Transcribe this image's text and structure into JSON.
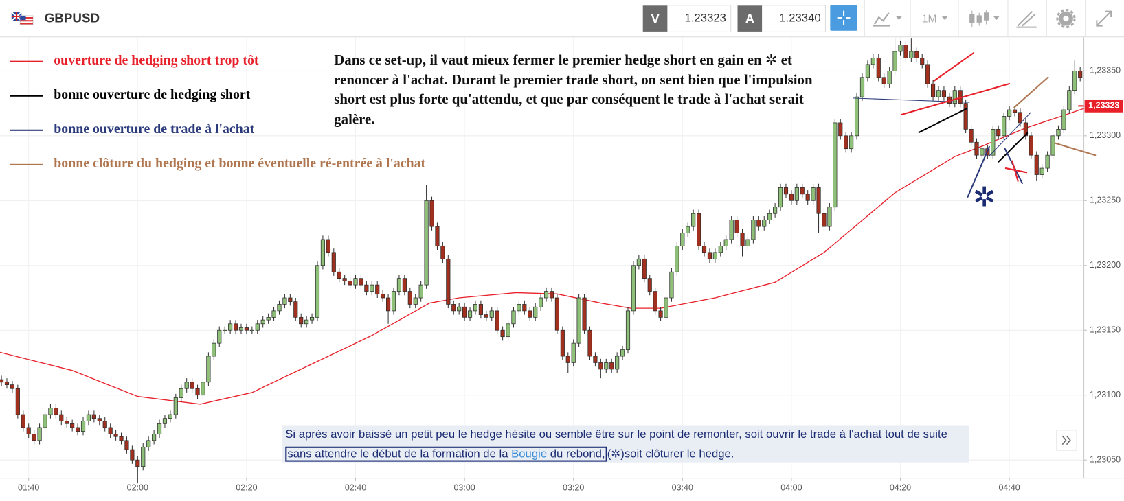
{
  "toolbar": {
    "symbol": "GBPUSD",
    "bid_label": "V",
    "bid": "1.23323",
    "ask_label": "A",
    "ask": "1.23340",
    "timeframe": "1M"
  },
  "legend": [
    {
      "label": "ouverture de hedging short trop tôt",
      "color": "#e8202a"
    },
    {
      "label": "bonne ouverture de hedging short",
      "color": "#000000"
    },
    {
      "label": "bonne ouverture de trade à l'achat",
      "color": "#2b3a7a"
    },
    {
      "label": "bonne clôture du hedging et bonne éventuelle ré-entrée à l'achat",
      "color": "#b07650"
    }
  ],
  "note": {
    "parts": [
      "Dans ce set-up, il vaut mieux fermer le premier hedge short en gain en ",
      "✲",
      " et renoncer à l'achat. Durant le premier trade short, on sent bien que l'impulsion short est plus forte qu'attendu, et que par conséquent le trade à l'achat serait galère."
    ]
  },
  "chart_marker": "✲",
  "bottom_note": {
    "lead": "Si après avoir baissé un petit peu le hedge hésite ou semble être sur le point de remonter, soit ouvrir le  trade à l'achat tout de suite ",
    "boxed": "sans attendre le début de la formation de la ",
    "highlight": "Bougie",
    "boxed_end": " du rebond,",
    "tail": "(✲)soit clôturer le  hedge."
  },
  "chart_data": {
    "type": "candlestick",
    "up_color": "#8fc07a",
    "down_color": "#a1301f",
    "grid": true,
    "xlim": [
      -0.26,
      198.68
    ],
    "ylim": [
      1.23036,
      1.23376
    ],
    "xticks": [
      {
        "value": 5,
        "label": "01:40"
      },
      {
        "value": 25,
        "label": "02:00"
      },
      {
        "value": 45,
        "label": "02:20"
      },
      {
        "value": 65,
        "label": "02:40"
      },
      {
        "value": 85,
        "label": "03:00"
      },
      {
        "value": 105,
        "label": "03:20"
      },
      {
        "value": 125,
        "label": "03:40"
      },
      {
        "value": 145,
        "label": "04:00"
      },
      {
        "value": 165,
        "label": "04:20"
      },
      {
        "value": 185,
        "label": "04:40"
      }
    ],
    "yticks": [
      {
        "value": 1.2305,
        "label": "1,23050"
      },
      {
        "value": 1.231,
        "label": "1,23100"
      },
      {
        "value": 1.2315,
        "label": "1,23150"
      },
      {
        "value": 1.232,
        "label": "1,23200"
      },
      {
        "value": 1.2325,
        "label": "1,23250"
      },
      {
        "value": 1.233,
        "label": "1,23300"
      },
      {
        "value": 1.2335,
        "label": "1,23350"
      }
    ],
    "current_price": {
      "value": 1.23323,
      "label": "1,23323",
      "color": "#e8202a"
    },
    "open": [
      1.23112,
      1.2311,
      1.23108,
      1.23105,
      1.23085,
      1.23075,
      1.2307,
      1.23065,
      1.23075,
      1.23085,
      1.2309,
      1.23085,
      1.2308,
      1.23078,
      1.23075,
      1.23072,
      1.2308,
      1.23085,
      1.23082,
      1.2308,
      1.23075,
      1.2307,
      1.23068,
      1.23065,
      1.23058,
      1.2305,
      1.23045,
      1.2306,
      1.23065,
      1.2307,
      1.23078,
      1.23082,
      1.23085,
      1.23098,
      1.23105,
      1.2311,
      1.23105,
      1.231,
      1.2311,
      1.2313,
      1.2314,
      1.2315,
      1.2315,
      1.23155,
      1.2315,
      1.23152,
      1.2315,
      1.2315,
      1.23155,
      1.23158,
      1.2316,
      1.23165,
      1.2317,
      1.23175,
      1.23172,
      1.2316,
      1.23155,
      1.23158,
      1.2316,
      1.232,
      1.2322,
      1.2321,
      1.23195,
      1.2319,
      1.23188,
      1.23185,
      1.2319,
      1.23185,
      1.2318,
      1.23185,
      1.23178,
      1.23175,
      1.23165,
      1.2318,
      1.2319,
      1.2318,
      1.2317,
      1.23175,
      1.23185,
      1.2325,
      1.2323,
      1.23215,
      1.23205,
      1.2317,
      1.23165,
      1.23168,
      1.2316,
      1.23165,
      1.2317,
      1.23162,
      1.2316,
      1.23165,
      1.2315,
      1.23145,
      1.23155,
      1.23165,
      1.2317,
      1.23165,
      1.2316,
      1.23168,
      1.23175,
      1.2318,
      1.23175,
      1.2315,
      1.2313,
      1.23125,
      1.2314,
      1.23175,
      1.2315,
      1.2313,
      1.23125,
      1.2312,
      1.23125,
      1.2312,
      1.2313,
      1.23135,
      1.23165,
      1.232,
      1.23205,
      1.2319,
      1.2318,
      1.23165,
      1.2316,
      1.23175,
      1.23195,
      1.23215,
      1.23225,
      1.2323,
      1.2324,
      1.23215,
      1.2321,
      1.23205,
      1.2321,
      1.23215,
      1.2322,
      1.23235,
      1.23225,
      1.23215,
      1.2322,
      1.23235,
      1.2323,
      1.23235,
      1.2324,
      1.23245,
      1.2326,
      1.23255,
      1.2325,
      1.2326,
      1.23255,
      1.2325,
      1.2326,
      1.2324,
      1.2323,
      1.23245,
      1.2331,
      1.233,
      1.2329,
      1.233,
      1.2333,
      1.23345,
      1.23355,
      1.2336,
      1.23345,
      1.2334,
      1.2335,
      1.23365,
      1.2337,
      1.2336,
      1.23365,
      1.2336,
      1.23355,
      1.2334,
      1.2333,
      1.23335,
      1.2333,
      1.23325,
      1.23335,
      1.23325,
      1.23305,
      1.23295,
      1.23285,
      1.2329,
      1.23285,
      1.23305,
      1.233,
      1.23315,
      1.2332,
      1.23318,
      1.2331,
      1.233,
      1.23285,
      1.2327,
      1.23275,
      1.23285,
      1.233,
      1.23305,
      1.2332,
      1.23335,
      1.2335
    ],
    "high": [
      1.23115,
      1.23113,
      1.23111,
      1.23108,
      1.23088,
      1.23078,
      1.23073,
      1.23078,
      1.23088,
      1.23093,
      1.23093,
      1.23088,
      1.23083,
      1.23081,
      1.23078,
      1.23083,
      1.23088,
      1.23088,
      1.23085,
      1.23083,
      1.23078,
      1.23073,
      1.23071,
      1.23068,
      1.23061,
      1.23053,
      1.23063,
      1.23068,
      1.23073,
      1.23081,
      1.23085,
      1.23088,
      1.23101,
      1.23108,
      1.23113,
      1.23113,
      1.23108,
      1.23113,
      1.23133,
      1.23143,
      1.23153,
      1.23153,
      1.23158,
      1.23158,
      1.23155,
      1.23155,
      1.23153,
      1.23158,
      1.23161,
      1.23163,
      1.23168,
      1.23173,
      1.23178,
      1.23178,
      1.23175,
      1.23163,
      1.23161,
      1.23163,
      1.23203,
      1.23223,
      1.23223,
      1.23213,
      1.23198,
      1.23193,
      1.23191,
      1.23193,
      1.23193,
      1.23188,
      1.23188,
      1.23188,
      1.23181,
      1.23178,
      1.23183,
      1.23193,
      1.23193,
      1.23183,
      1.23178,
      1.23188,
      1.23262,
      1.23253,
      1.23233,
      1.23218,
      1.23208,
      1.23173,
      1.23171,
      1.23171,
      1.23168,
      1.23173,
      1.23173,
      1.23165,
      1.23168,
      1.23168,
      1.23153,
      1.23158,
      1.23168,
      1.23173,
      1.23173,
      1.23168,
      1.23171,
      1.23178,
      1.23183,
      1.23183,
      1.23178,
      1.23153,
      1.23133,
      1.23143,
      1.23178,
      1.23178,
      1.23153,
      1.23133,
      1.23128,
      1.23128,
      1.23128,
      1.23133,
      1.23138,
      1.23168,
      1.23203,
      1.23208,
      1.23208,
      1.23193,
      1.23183,
      1.23168,
      1.23178,
      1.23198,
      1.23218,
      1.23228,
      1.23233,
      1.23243,
      1.23243,
      1.23218,
      1.23213,
      1.23213,
      1.23218,
      1.23223,
      1.23238,
      1.23238,
      1.23228,
      1.23223,
      1.23238,
      1.23238,
      1.23238,
      1.23243,
      1.23248,
      1.23263,
      1.23263,
      1.23258,
      1.23263,
      1.23263,
      1.23258,
      1.23263,
      1.23263,
      1.23243,
      1.23248,
      1.23313,
      1.23313,
      1.23303,
      1.23303,
      1.23333,
      1.23348,
      1.23358,
      1.23363,
      1.23363,
      1.23348,
      1.23353,
      1.23375,
      1.23373,
      1.23373,
      1.23375,
      1.23368,
      1.23363,
      1.23358,
      1.23343,
      1.23338,
      1.23338,
      1.23333,
      1.23338,
      1.23338,
      1.23328,
      1.23308,
      1.23298,
      1.23293,
      1.23293,
      1.23308,
      1.23308,
      1.23318,
      1.23323,
      1.23323,
      1.23321,
      1.23313,
      1.23303,
      1.23288,
      1.23278,
      1.23288,
      1.23303,
      1.23308,
      1.23323,
      1.23338,
      1.23358,
      1.23353
    ],
    "low": [
      1.23107,
      1.23105,
      1.23102,
      1.23082,
      1.23072,
      1.23067,
      1.23062,
      1.23062,
      1.23072,
      1.23082,
      1.23082,
      1.23077,
      1.23075,
      1.23072,
      1.23069,
      1.23069,
      1.23077,
      1.23079,
      1.23077,
      1.23072,
      1.23067,
      1.23065,
      1.23062,
      1.23055,
      1.23047,
      1.23032,
      1.23042,
      1.23057,
      1.23062,
      1.23067,
      1.23075,
      1.23079,
      1.23082,
      1.23095,
      1.23102,
      1.23102,
      1.23097,
      1.23097,
      1.23107,
      1.23127,
      1.23137,
      1.23147,
      1.23147,
      1.23147,
      1.23147,
      1.23147,
      1.23147,
      1.23147,
      1.23152,
      1.23155,
      1.23157,
      1.23162,
      1.23167,
      1.23169,
      1.23157,
      1.23152,
      1.23152,
      1.23155,
      1.23157,
      1.23197,
      1.23207,
      1.23192,
      1.23187,
      1.23185,
      1.23182,
      1.23182,
      1.23182,
      1.23177,
      1.23177,
      1.23175,
      1.23172,
      1.23155,
      1.23162,
      1.23177,
      1.23177,
      1.23167,
      1.23167,
      1.23172,
      1.23182,
      1.23227,
      1.23212,
      1.23202,
      1.23167,
      1.23162,
      1.23162,
      1.23157,
      1.23157,
      1.23162,
      1.23159,
      1.23157,
      1.23157,
      1.23147,
      1.23142,
      1.23142,
      1.23152,
      1.23162,
      1.23162,
      1.23157,
      1.23157,
      1.23165,
      1.23172,
      1.23172,
      1.23147,
      1.23127,
      1.23117,
      1.23122,
      1.23137,
      1.23147,
      1.23127,
      1.23122,
      1.23113,
      1.23117,
      1.23117,
      1.23117,
      1.23127,
      1.23132,
      1.23162,
      1.23197,
      1.23187,
      1.23177,
      1.23162,
      1.23157,
      1.23157,
      1.23172,
      1.23192,
      1.23212,
      1.23222,
      1.23227,
      1.23212,
      1.23207,
      1.23202,
      1.23202,
      1.23207,
      1.23212,
      1.23217,
      1.23222,
      1.23207,
      1.23212,
      1.23217,
      1.23227,
      1.23227,
      1.23232,
      1.23237,
      1.23242,
      1.23252,
      1.23247,
      1.23247,
      1.23252,
      1.23247,
      1.23247,
      1.23225,
      1.23227,
      1.23227,
      1.23242,
      1.23297,
      1.23287,
      1.23287,
      1.23297,
      1.23327,
      1.23342,
      1.23352,
      1.23342,
      1.23337,
      1.23337,
      1.23347,
      1.23362,
      1.23357,
      1.23357,
      1.23357,
      1.23352,
      1.23337,
      1.23327,
      1.23327,
      1.23327,
      1.23322,
      1.23322,
      1.23322,
      1.23302,
      1.23292,
      1.23282,
      1.23282,
      1.23282,
      1.23282,
      1.23297,
      1.23297,
      1.23312,
      1.23315,
      1.23307,
      1.23297,
      1.23282,
      1.23265,
      1.23267,
      1.23272,
      1.23282,
      1.23297,
      1.23302,
      1.23317,
      1.23332,
      1.23342
    ],
    "close": [
      1.2311,
      1.23108,
      1.23105,
      1.23085,
      1.23075,
      1.2307,
      1.23065,
      1.23075,
      1.23085,
      1.2309,
      1.23085,
      1.2308,
      1.23078,
      1.23075,
      1.23072,
      1.2308,
      1.23085,
      1.23082,
      1.2308,
      1.23075,
      1.2307,
      1.23068,
      1.23065,
      1.23058,
      1.2305,
      1.23045,
      1.2306,
      1.23065,
      1.2307,
      1.23078,
      1.23082,
      1.23085,
      1.23098,
      1.23105,
      1.2311,
      1.23105,
      1.231,
      1.2311,
      1.2313,
      1.2314,
      1.2315,
      1.2315,
      1.23155,
      1.2315,
      1.23152,
      1.2315,
      1.2315,
      1.23155,
      1.23158,
      1.2316,
      1.23165,
      1.2317,
      1.23175,
      1.23172,
      1.2316,
      1.23155,
      1.23158,
      1.2316,
      1.232,
      1.2322,
      1.2321,
      1.23195,
      1.2319,
      1.23188,
      1.23185,
      1.2319,
      1.23185,
      1.2318,
      1.23185,
      1.23178,
      1.23175,
      1.23165,
      1.2318,
      1.2319,
      1.2318,
      1.2317,
      1.23175,
      1.23185,
      1.2325,
      1.2323,
      1.23215,
      1.23205,
      1.2317,
      1.23165,
      1.23168,
      1.2316,
      1.23165,
      1.2317,
      1.23162,
      1.2316,
      1.23165,
      1.2315,
      1.23145,
      1.23155,
      1.23165,
      1.2317,
      1.23165,
      1.2316,
      1.23168,
      1.23175,
      1.2318,
      1.23175,
      1.2315,
      1.2313,
      1.23125,
      1.2314,
      1.23175,
      1.2315,
      1.2313,
      1.23125,
      1.2312,
      1.23125,
      1.2312,
      1.2313,
      1.23135,
      1.23165,
      1.232,
      1.23205,
      1.2319,
      1.2318,
      1.23165,
      1.2316,
      1.23175,
      1.23195,
      1.23215,
      1.23225,
      1.2323,
      1.2324,
      1.23215,
      1.2321,
      1.23205,
      1.2321,
      1.23215,
      1.2322,
      1.23235,
      1.23225,
      1.23215,
      1.2322,
      1.23235,
      1.2323,
      1.23235,
      1.2324,
      1.23245,
      1.2326,
      1.23255,
      1.2325,
      1.2326,
      1.23255,
      1.2325,
      1.2326,
      1.2324,
      1.2323,
      1.23245,
      1.2331,
      1.233,
      1.2329,
      1.233,
      1.2333,
      1.23345,
      1.23355,
      1.2336,
      1.23345,
      1.2334,
      1.2335,
      1.23365,
      1.2337,
      1.2336,
      1.23365,
      1.2336,
      1.23355,
      1.2334,
      1.2333,
      1.23335,
      1.2333,
      1.23325,
      1.23335,
      1.23325,
      1.23305,
      1.23295,
      1.23285,
      1.2329,
      1.23285,
      1.23305,
      1.233,
      1.23315,
      1.2332,
      1.23318,
      1.2331,
      1.233,
      1.23285,
      1.2327,
      1.23275,
      1.23285,
      1.233,
      1.23305,
      1.2332,
      1.23335,
      1.2335,
      1.23345
    ],
    "moving_average": {
      "color": "#e8202a",
      "x": [
        -0.26,
        13,
        25,
        36.5,
        46,
        56,
        68,
        78.6,
        84,
        94.5,
        102,
        110,
        115.5,
        121,
        131,
        142,
        151,
        164,
        175,
        180,
        188,
        194.5,
        198.68
      ],
      "values": [
        1.23133,
        1.23119,
        1.23099,
        1.23093,
        1.23102,
        1.23122,
        1.23146,
        1.23171,
        1.23175,
        1.23179,
        1.23178,
        1.23171,
        1.23167,
        1.23167,
        1.23175,
        1.23187,
        1.2321,
        1.23256,
        1.23284,
        1.23292,
        1.23306,
        1.23315,
        1.23321
      ]
    }
  }
}
